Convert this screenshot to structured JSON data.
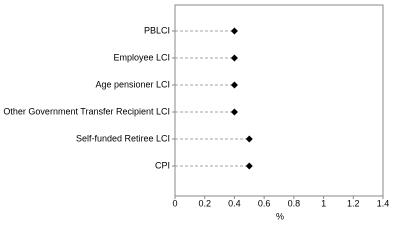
{
  "chart_data": {
    "type": "dot",
    "categories": [
      "PBLCI",
      "Employee LCI",
      "Age pensioner LCI",
      "Other Government Transfer Recipient LCI",
      "Self-funded Retiree LCI",
      "CPI"
    ],
    "values": [
      0.4,
      0.4,
      0.4,
      0.4,
      0.5,
      0.5
    ],
    "color": "#000000",
    "xlabel": "%",
    "xlim": [
      0,
      1.4
    ],
    "xticks": [
      0,
      0.2,
      0.4,
      0.6,
      0.8,
      1,
      1.2,
      1.4
    ]
  }
}
